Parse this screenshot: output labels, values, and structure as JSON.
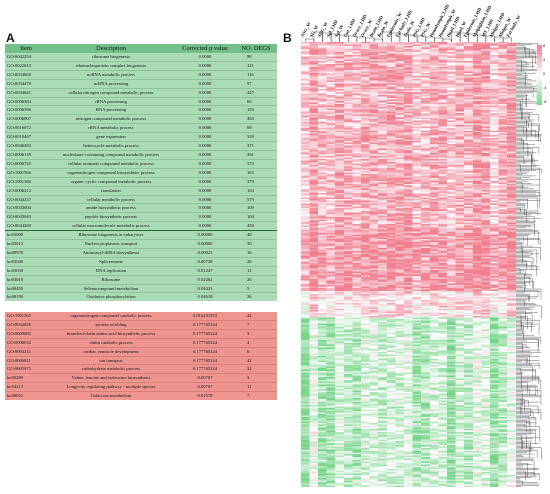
{
  "panel_a_label": "A",
  "panel_b_label": "B",
  "table": {
    "headers": {
      "item": "Item",
      "description": "Description",
      "pvalue": "Corrected p value",
      "degs": "NO. DEGS"
    },
    "green_rows": [
      {
        "item": "GO:0042254",
        "desc": "ribosome biogenesis",
        "p": "0.0000",
        "n": "98"
      },
      {
        "item": "GO:0022613",
        "desc": "ribonucleoprotein complex biogenesis",
        "p": "0.0000",
        "n": "121"
      },
      {
        "item": "GO:0034660",
        "desc": "ncRNA metabolic process",
        "p": "0.0000",
        "n": "116"
      },
      {
        "item": "GO:0034470",
        "desc": "ncRNA processing",
        "p": "0.0000",
        "n": "97"
      },
      {
        "item": "GO:0034641",
        "desc": "cellular nitrogen compound metabolic process",
        "p": "0.0000",
        "n": "447"
      },
      {
        "item": "GO:0006364",
        "desc": "rRNA processing",
        "p": "0.0000",
        "n": "69"
      },
      {
        "item": "GO:0006396",
        "desc": "RNA processing",
        "p": "0.0000",
        "n": "159"
      },
      {
        "item": "GO:0006807",
        "desc": "nitrogen compound metabolic process",
        "p": "0.0000",
        "n": "465"
      },
      {
        "item": "GO:0016072",
        "desc": "rRNA metabolic process",
        "p": "0.0000",
        "n": "69"
      },
      {
        "item": "GO:0010467",
        "desc": "gene expression",
        "p": "0.0000",
        "n": "339"
      },
      {
        "item": "GO:0046483",
        "desc": "heterocycle metabolic process",
        "p": "0.0000",
        "n": "371"
      },
      {
        "item": "GO:0006139",
        "desc": "nucleobase-containing compound metabolic process",
        "p": "0.0000",
        "n": "361"
      },
      {
        "item": "GO:0006725",
        "desc": "cellular aromatic compound metabolic process",
        "p": "0.0000",
        "n": "373"
      },
      {
        "item": "GO:1901566",
        "desc": "organonitrogen compound biosynthetic process",
        "p": "0.0000",
        "n": "165"
      },
      {
        "item": "GO:1901360",
        "desc": "organic cyclic compound metabolic process",
        "p": "0.0000",
        "n": "379"
      },
      {
        "item": "GO:0006412",
        "desc": "translation",
        "p": "0.0000",
        "n": "104"
      },
      {
        "item": "GO:0044237",
        "desc": "cellular metabolic process",
        "p": "0.0000",
        "n": "579"
      },
      {
        "item": "GO:0043604",
        "desc": "amide biosynthetic process",
        "p": "0.0000",
        "n": "109"
      },
      {
        "item": "GO:0043043",
        "desc": "peptide biosynthetic process",
        "p": "0.0000",
        "n": "104"
      },
      {
        "item": "GO:0044260",
        "desc": "cellular macromolecule metabolic process",
        "p": "0.0000",
        "n": "450"
      },
      {
        "item": "ko03008",
        "desc": "Ribosome biogenesis in eukaryotes",
        "p": "0.00000",
        "n": "40",
        "sep": true
      },
      {
        "item": "ko03013",
        "desc": "Nucleocytoplasmic transport",
        "p": "0.00000",
        "n": "30"
      },
      {
        "item": "ko00970",
        "desc": "Aminoacyl-tRNA biosynthesis",
        "p": "0.00021",
        "n": "16"
      },
      {
        "item": "ko03040",
        "desc": "Spliceosome",
        "p": "0.00738",
        "n": "28"
      },
      {
        "item": "ko03030",
        "desc": "DNA replication",
        "p": "0.01247",
        "n": "12"
      },
      {
        "item": "ko03010",
        "desc": "Ribosome",
        "p": "0.02262",
        "n": "26"
      },
      {
        "item": "ko00450",
        "desc": "Selenocompound metabolism",
        "p": "0.04433",
        "n": "5"
      },
      {
        "item": "ko00190",
        "desc": "Oxidative phosphorylation",
        "p": "0.04618",
        "n": "26"
      }
    ],
    "red_rows": [
      {
        "item": "GO:1901565",
        "desc": "organonitrogen compound catabolic process",
        "p": "0.016231553",
        "n": "24"
      },
      {
        "item": "GO:0042026",
        "desc": "protein refolding",
        "p": "0.177765324",
        "n": "7"
      },
      {
        "item": "GO:0009082",
        "desc": "branched-chain amino acid biosynthetic process",
        "p": "0.177765324",
        "n": "3"
      },
      {
        "item": "GO:0006032",
        "desc": "chitin catabolic process",
        "p": "0.177765324",
        "n": "4"
      },
      {
        "item": "GO:0003231",
        "desc": "cardiac ventricle development",
        "p": "0.177765324",
        "n": "6"
      },
      {
        "item": "GO:0006811",
        "desc": "ion transport",
        "p": "0.177765324",
        "n": "42"
      },
      {
        "item": "GO:0005975",
        "desc": "carbohydrate metabolic process",
        "p": "0.177765324",
        "n": "32"
      },
      {
        "item": "ko00290",
        "desc": "Valine, leucine and isoleucine biosynthesis",
        "p": "0.00707",
        "n": "3",
        "sep": true
      },
      {
        "item": "ko04213",
        "desc": "Longevity regulating pathway - multiple species",
        "p": "0.00707",
        "n": "11"
      },
      {
        "item": "ko00052",
        "desc": "Galactose metabolism",
        "p": "0.01578",
        "n": "7"
      }
    ]
  },
  "heatmap": {
    "samples": [
      "ASG_W",
      "SG_W",
      "SDG_W",
      "Spl_LHD",
      "Spl_W",
      "Gut_LHD",
      "Ovary_LHD",
      "Ovary_W",
      "Brain_LHD",
      "Brain_W",
      "Epidermis_W",
      "Fat body_LHD",
      "Testis_W",
      "PSG_LHD",
      "PSG_W",
      "Hemolymph_LHD",
      "Hemolymph_W",
      "Head_LHD",
      "Head_W",
      "Epidermis_LHD",
      "Malpighian_LHD",
      "MT_LHD",
      "Midgut_LHD",
      "Midgut_W",
      "Fat body_W"
    ],
    "colors": {
      "high": "#f07f8f",
      "mid": "#ffffff",
      "low": "#77d58a"
    },
    "legend_ticks": [
      "8",
      "4",
      "0",
      "-4",
      "-8"
    ]
  }
}
